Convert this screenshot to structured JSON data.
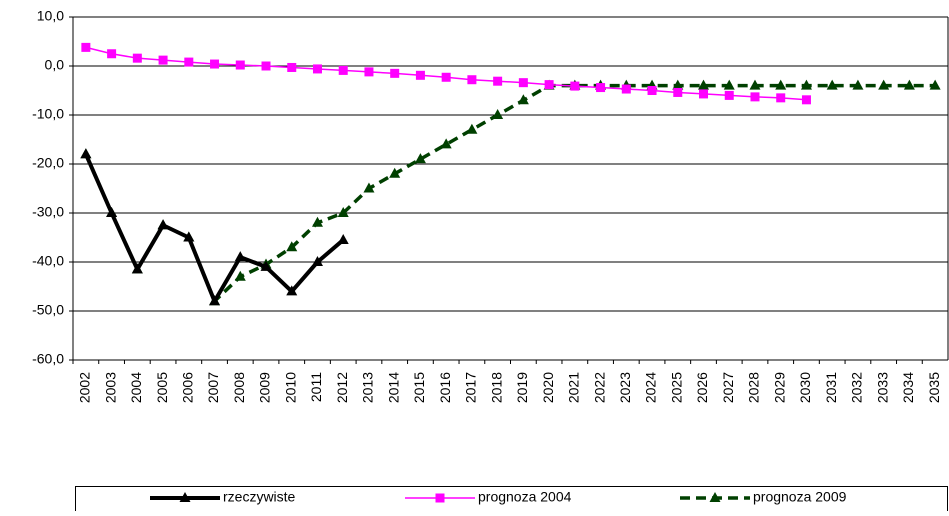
{
  "chart_data": {
    "type": "line",
    "categories": [
      "2002",
      "2003",
      "2004",
      "2005",
      "2006",
      "2007",
      "2008",
      "2009",
      "2010",
      "2011",
      "2012",
      "2013",
      "2014",
      "2015",
      "2016",
      "2017",
      "2018",
      "2019",
      "2020",
      "2021",
      "2022",
      "2023",
      "2024",
      "2025",
      "2026",
      "2027",
      "2028",
      "2029",
      "2030",
      "2031",
      "2032",
      "2033",
      "2034",
      "2035"
    ],
    "series": [
      {
        "name": "rzeczywiste",
        "color": "#000000",
        "line_style": "bold",
        "marker": "triangle",
        "values": [
          -18,
          -30,
          -41.5,
          -32.5,
          -35,
          -48,
          -39,
          -41,
          -46,
          -40,
          -35.5,
          null,
          null,
          null,
          null,
          null,
          null,
          null,
          null,
          null,
          null,
          null,
          null,
          null,
          null,
          null,
          null,
          null,
          null,
          null,
          null,
          null,
          null,
          null
        ]
      },
      {
        "name": "prognoza 2004",
        "color": "#ff00ff",
        "line_style": "solid",
        "marker": "square",
        "values": [
          3.8,
          2.5,
          1.6,
          1.2,
          0.8,
          0.4,
          0.2,
          0,
          -0.3,
          -0.6,
          -0.9,
          -1.2,
          -1.5,
          -1.9,
          -2.3,
          -2.8,
          -3.1,
          -3.4,
          -3.8,
          -4.1,
          -4.4,
          -4.7,
          -5.0,
          -5.4,
          -5.7,
          -6.0,
          -6.3,
          -6.5,
          -6.9,
          null,
          null,
          null,
          null,
          null
        ]
      },
      {
        "name": "prognoza 2009",
        "color": "#004000",
        "line_style": "dashed",
        "marker": "triangle",
        "values": [
          -18,
          -30,
          -41.5,
          -32.5,
          -35,
          -48,
          -43,
          -40.5,
          -37,
          -32,
          -30,
          -25,
          -22,
          -19,
          -16,
          -13,
          -10,
          -7,
          -4,
          -4,
          -4,
          -4,
          -4,
          -4,
          -4,
          -4,
          -4,
          -4,
          -4,
          -4,
          -4,
          -4,
          -4,
          -4
        ]
      }
    ],
    "ylim": [
      -60,
      10
    ],
    "yticks": [
      {
        "value": -60,
        "label": "-60,0"
      },
      {
        "value": -50,
        "label": "-50,0"
      },
      {
        "value": -40,
        "label": "-40,0"
      },
      {
        "value": -30,
        "label": "-30,0"
      },
      {
        "value": -20,
        "label": "-20,0"
      },
      {
        "value": -10,
        "label": "-10,0"
      },
      {
        "value": 0,
        "label": "0,0"
      },
      {
        "value": 10,
        "label": "10,0"
      }
    ],
    "grid": true,
    "legend": "bottom"
  }
}
